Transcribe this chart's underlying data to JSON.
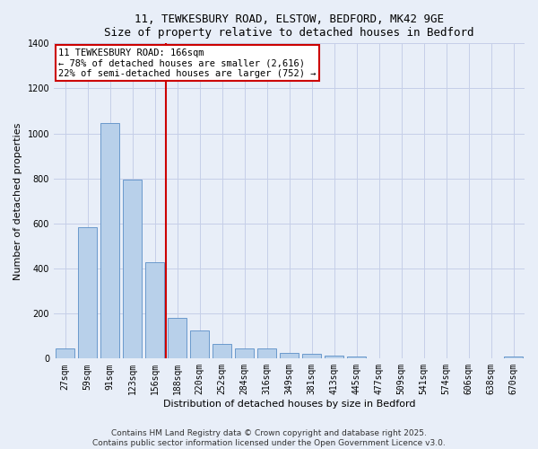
{
  "title_line1": "11, TEWKESBURY ROAD, ELSTOW, BEDFORD, MK42 9GE",
  "title_line2": "Size of property relative to detached houses in Bedford",
  "xlabel": "Distribution of detached houses by size in Bedford",
  "ylabel": "Number of detached properties",
  "categories": [
    "27sqm",
    "59sqm",
    "91sqm",
    "123sqm",
    "156sqm",
    "188sqm",
    "220sqm",
    "252sqm",
    "284sqm",
    "316sqm",
    "349sqm",
    "381sqm",
    "413sqm",
    "445sqm",
    "477sqm",
    "509sqm",
    "541sqm",
    "574sqm",
    "606sqm",
    "638sqm",
    "670sqm"
  ],
  "values": [
    45,
    585,
    1045,
    795,
    430,
    180,
    125,
    65,
    45,
    45,
    25,
    20,
    15,
    10,
    0,
    0,
    0,
    0,
    0,
    0,
    10
  ],
  "bar_color": "#b8d0ea",
  "bar_edge_color": "#5b8fc7",
  "background_color": "#e8eef8",
  "grid_color": "#c5cfe8",
  "vline_x_index": 4,
  "vline_color": "#cc0000",
  "annotation_line1": "11 TEWKESBURY ROAD: 166sqm",
  "annotation_line2": "← 78% of detached houses are smaller (2,616)",
  "annotation_line3": "22% of semi-detached houses are larger (752) →",
  "annotation_box_color": "#ffffff",
  "annotation_box_edge": "#cc0000",
  "ylim": [
    0,
    1400
  ],
  "yticks": [
    0,
    200,
    400,
    600,
    800,
    1000,
    1200,
    1400
  ],
  "footer_line1": "Contains HM Land Registry data © Crown copyright and database right 2025.",
  "footer_line2": "Contains public sector information licensed under the Open Government Licence v3.0.",
  "title_fontsize": 9,
  "subtitle_fontsize": 9,
  "axis_label_fontsize": 8,
  "tick_fontsize": 7,
  "annotation_fontsize": 7.5,
  "footer_fontsize": 6.5
}
